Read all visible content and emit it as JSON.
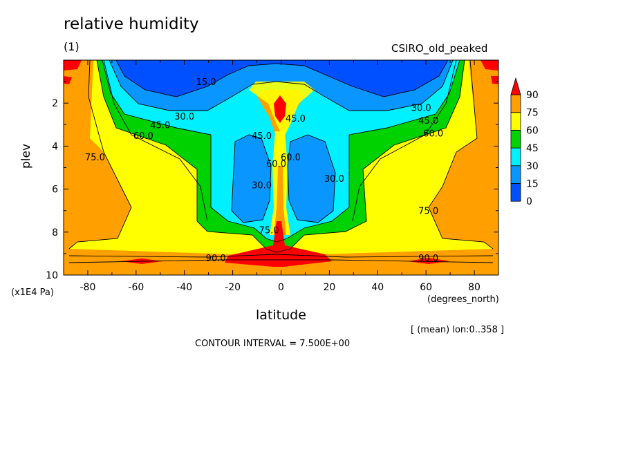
{
  "chart_data": {
    "type": "heatmap",
    "title": "relative humidity",
    "panel": "(1)",
    "model": "CSIRO_old_peaked",
    "xlabel": "latitude",
    "ylabel": "plev",
    "x_unit": "(degrees_north)",
    "y_unit": "(x1E4 Pa)",
    "average_note": "[ (mean) lon:0..358 ]",
    "contour_interval": "CONTOUR INTERVAL = 7.500E+00",
    "xlim": [
      -90,
      90
    ],
    "ylim": [
      0,
      10
    ],
    "y_inverted": true,
    "x_ticks": [
      -80,
      -60,
      -40,
      -20,
      0,
      20,
      40,
      60,
      80
    ],
    "y_ticks": [
      2,
      4,
      6,
      8,
      10
    ],
    "colorbar": {
      "levels": [
        0,
        15,
        30,
        45,
        60,
        75,
        90
      ],
      "colors": [
        "#0050ff",
        "#0a96ff",
        "#00f0ff",
        "#00d200",
        "#ffff00",
        "#ffa000",
        "#ff0000"
      ],
      "overflow_arrow": "top"
    },
    "contour_labels": [
      {
        "text": "15.0",
        "lat": -31,
        "plev": 1.0
      },
      {
        "text": "30.0",
        "lat": -40,
        "plev": 2.6
      },
      {
        "text": "45.0",
        "lat": -50,
        "plev": 3.0
      },
      {
        "text": "60.0",
        "lat": -57,
        "plev": 3.5
      },
      {
        "text": "75.0",
        "lat": -77,
        "plev": 4.5
      },
      {
        "text": "30.0",
        "lat": 58,
        "plev": 2.2
      },
      {
        "text": "45.0",
        "lat": 61,
        "plev": 2.8
      },
      {
        "text": "60.0",
        "lat": 63,
        "plev": 3.4
      },
      {
        "text": "75.0",
        "lat": 61,
        "plev": 7.0
      },
      {
        "text": "45.0",
        "lat": -8,
        "plev": 3.5
      },
      {
        "text": "45.0",
        "lat": 6,
        "plev": 2.7
      },
      {
        "text": "30.0",
        "lat": -8,
        "plev": 5.8
      },
      {
        "text": "60.0",
        "lat": -2,
        "plev": 4.8
      },
      {
        "text": "60.0",
        "lat": 4,
        "plev": 4.5
      },
      {
        "text": "30.0",
        "lat": 22,
        "plev": 5.5
      },
      {
        "text": "75.0",
        "lat": -5,
        "plev": 7.9
      },
      {
        "text": "90.0",
        "lat": -27,
        "plev": 9.2
      },
      {
        "text": "90.0",
        "lat": 61,
        "plev": 9.2
      }
    ]
  }
}
